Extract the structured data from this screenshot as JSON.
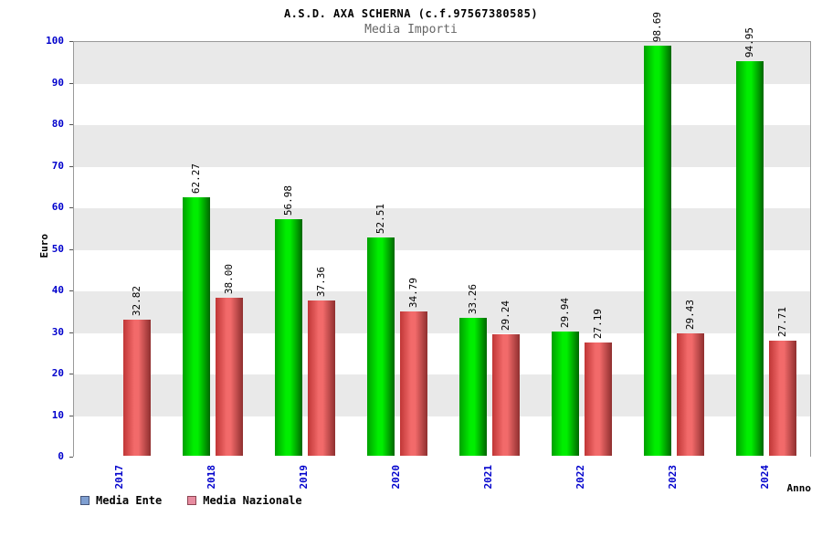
{
  "title": "A.S.D. AXA SCHERNA (c.f.97567380585)",
  "subtitle": "Media Importi",
  "colors": {
    "axis_text": "#0000cc",
    "band_dark": "#e9e9e9",
    "band_light": "#ffffff",
    "plot_border": "#999999",
    "value_label": "#000000"
  },
  "chart_data": {
    "type": "bar",
    "title": "A.S.D. AXA SCHERNA (c.f.97567380585)",
    "subtitle": "Media Importi",
    "xlabel": "Anno",
    "ylabel": "Euro",
    "ylim": [
      0,
      100
    ],
    "ytick_step": 10,
    "grid": "alternating-horizontal-bands",
    "legend_position": "bottom-left",
    "categories": [
      "2017",
      "2018",
      "2019",
      "2020",
      "2021",
      "2022",
      "2023",
      "2024"
    ],
    "series": [
      {
        "name": "Media Ente",
        "values": [
          0,
          62.27,
          56.98,
          52.51,
          33.26,
          29.94,
          98.69,
          94.95
        ],
        "gradient": [
          "#00a000",
          "#00ee00",
          "#006600"
        ],
        "legend_fill": "#7f9fd1",
        "legend_border": "#46567a"
      },
      {
        "name": "Media Nazionale",
        "values": [
          32.82,
          38.0,
          37.36,
          34.79,
          29.24,
          27.19,
          29.43,
          27.71
        ],
        "gradient": [
          "#c03636",
          "#f26a6a",
          "#8f2f2f"
        ],
        "legend_fill": "#e78ca0",
        "legend_border": "#8c4452"
      }
    ]
  }
}
